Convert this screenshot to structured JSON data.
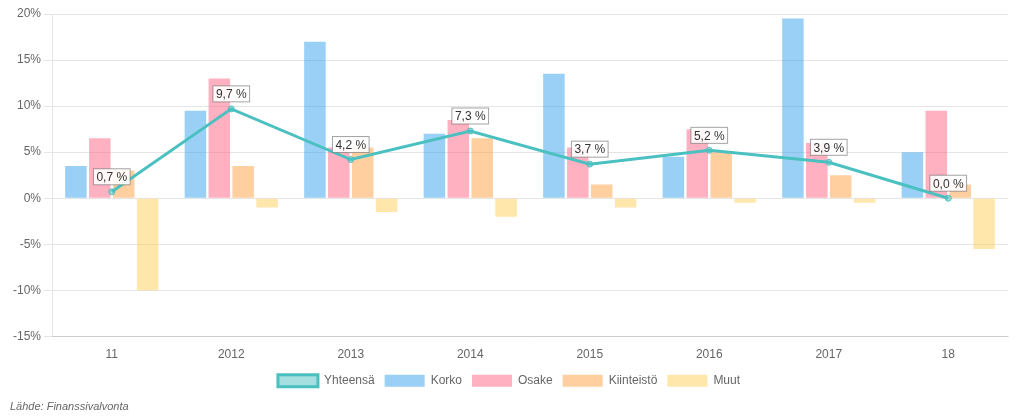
{
  "chart_data": {
    "type": "bar",
    "categories": [
      "11",
      "2012",
      "2013",
      "2014",
      "2015",
      "2016",
      "2017",
      "18"
    ],
    "series": [
      {
        "name": "Korko",
        "values": [
          3.5,
          9.5,
          17.0,
          7.0,
          13.5,
          4.5,
          19.5,
          5.0
        ]
      },
      {
        "name": "Osake",
        "values": [
          6.5,
          13.0,
          5.5,
          8.5,
          5.5,
          7.5,
          6.0,
          9.5
        ]
      },
      {
        "name": "Kiinteistö",
        "values": [
          3.0,
          3.5,
          5.5,
          6.5,
          1.5,
          5.0,
          2.5,
          1.5
        ]
      },
      {
        "name": "Muut",
        "values": [
          -10.0,
          -1.0,
          -1.5,
          -2.0,
          -1.0,
          -0.5,
          -0.5,
          -5.5
        ]
      },
      {
        "name": "Yhteensä",
        "type": "line",
        "data_labels": true,
        "values": [
          0.7,
          9.7,
          4.2,
          7.3,
          3.7,
          5.2,
          3.9,
          0.0
        ],
        "value_labels": [
          "0,7 %",
          "9,7 %",
          "4,2 %",
          "7,3 %",
          "3,7 %",
          "5,2 %",
          "3,9 %",
          "0,0 %"
        ]
      }
    ],
    "ylim": [
      -15,
      20
    ],
    "yticks": [
      {
        "value": -15,
        "label": "-15%"
      },
      {
        "value": -10,
        "label": "-10%"
      },
      {
        "value": -5,
        "label": "-5%"
      },
      {
        "value": 0,
        "label": "0%"
      },
      {
        "value": 5,
        "label": "5%"
      },
      {
        "value": 10,
        "label": "10%"
      },
      {
        "value": 15,
        "label": "15%"
      },
      {
        "value": 20,
        "label": "20%"
      }
    ],
    "grid": true,
    "legend": "bottom",
    "annotations": [
      "Lähde: Finanssivalvonta"
    ]
  }
}
